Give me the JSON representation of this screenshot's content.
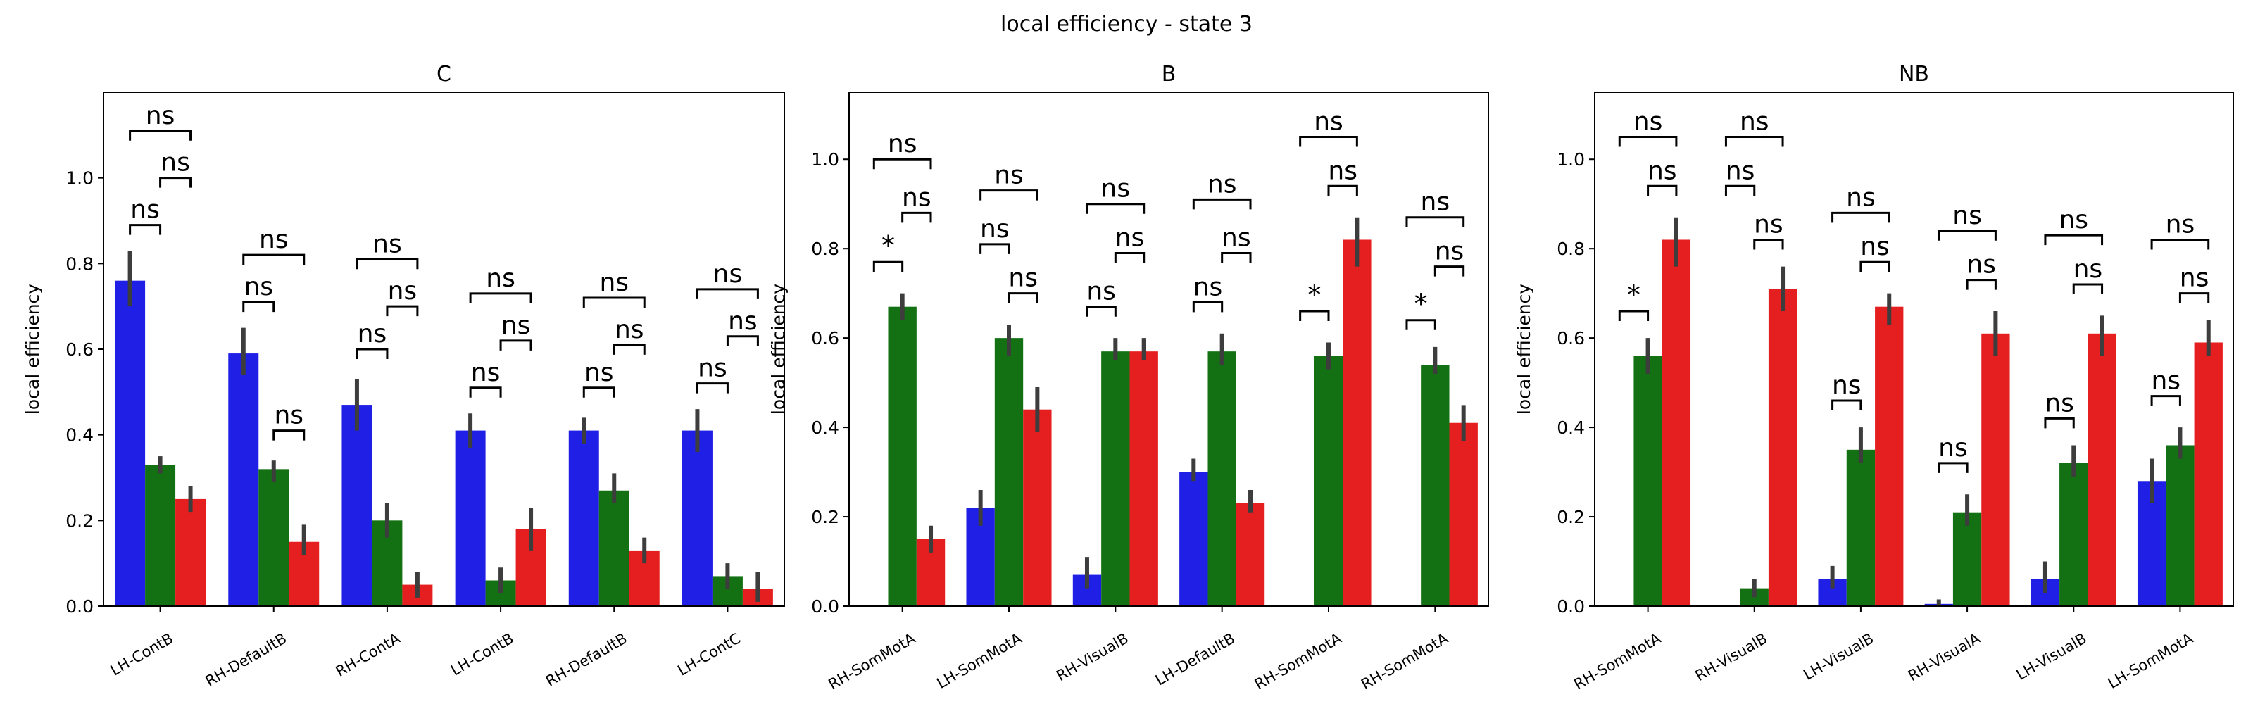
{
  "figure": {
    "suptitle": "local efficiency - state 3"
  },
  "chart_data": [
    {
      "type": "bar",
      "title": "C",
      "ylabel": "local efficiency",
      "xlabel": "",
      "ylim": [
        0,
        1.2
      ],
      "yticks": [
        0.0,
        0.2,
        0.4,
        0.6,
        0.8,
        1.0
      ],
      "grid": false,
      "categories": [
        "LH-ContB",
        "RH-DefaultB",
        "RH-ContA",
        "LH-ContB",
        "RH-DefaultB",
        "LH-ContC"
      ],
      "colors": [
        "#1f1fe5",
        "#137113",
        "#e51f1f"
      ],
      "series": [
        {
          "values": [
            0.76,
            0.59,
            0.47,
            0.41,
            0.41,
            0.41
          ],
          "err_low": [
            0.7,
            0.54,
            0.41,
            0.37,
            0.38,
            0.36
          ],
          "err_high": [
            0.83,
            0.65,
            0.53,
            0.45,
            0.44,
            0.46
          ]
        },
        {
          "values": [
            0.33,
            0.32,
            0.2,
            0.06,
            0.27,
            0.07
          ],
          "err_low": [
            0.31,
            0.29,
            0.16,
            0.03,
            0.24,
            0.04
          ],
          "err_high": [
            0.35,
            0.34,
            0.24,
            0.09,
            0.31,
            0.1
          ]
        },
        {
          "values": [
            0.25,
            0.15,
            0.05,
            0.18,
            0.13,
            0.04
          ],
          "err_low": [
            0.22,
            0.12,
            0.02,
            0.13,
            0.1,
            0.01
          ],
          "err_high": [
            0.28,
            0.19,
            0.08,
            0.23,
            0.16,
            0.08
          ]
        }
      ],
      "annotations": [
        {
          "category": 0,
          "from": 0,
          "to": 1,
          "y": 0.89,
          "text": "ns"
        },
        {
          "category": 0,
          "from": 1,
          "to": 2,
          "y": 1.0,
          "text": "ns"
        },
        {
          "category": 0,
          "from": 0,
          "to": 2,
          "y": 1.11,
          "text": "ns"
        },
        {
          "category": 1,
          "from": 0,
          "to": 1,
          "y": 0.71,
          "text": "ns"
        },
        {
          "category": 1,
          "from": 1,
          "to": 2,
          "y": 0.41,
          "text": "ns"
        },
        {
          "category": 1,
          "from": 0,
          "to": 2,
          "y": 0.82,
          "text": "ns"
        },
        {
          "category": 2,
          "from": 0,
          "to": 1,
          "y": 0.6,
          "text": "ns"
        },
        {
          "category": 2,
          "from": 1,
          "to": 2,
          "y": 0.7,
          "text": "ns"
        },
        {
          "category": 2,
          "from": 0,
          "to": 2,
          "y": 0.81,
          "text": "ns"
        },
        {
          "category": 3,
          "from": 0,
          "to": 1,
          "y": 0.51,
          "text": "ns"
        },
        {
          "category": 3,
          "from": 1,
          "to": 2,
          "y": 0.62,
          "text": "ns"
        },
        {
          "category": 3,
          "from": 0,
          "to": 2,
          "y": 0.73,
          "text": "ns"
        },
        {
          "category": 4,
          "from": 0,
          "to": 1,
          "y": 0.51,
          "text": "ns"
        },
        {
          "category": 4,
          "from": 1,
          "to": 2,
          "y": 0.61,
          "text": "ns"
        },
        {
          "category": 4,
          "from": 0,
          "to": 2,
          "y": 0.72,
          "text": "ns"
        },
        {
          "category": 5,
          "from": 0,
          "to": 1,
          "y": 0.52,
          "text": "ns"
        },
        {
          "category": 5,
          "from": 1,
          "to": 2,
          "y": 0.63,
          "text": "ns"
        },
        {
          "category": 5,
          "from": 0,
          "to": 2,
          "y": 0.74,
          "text": "ns"
        }
      ]
    },
    {
      "type": "bar",
      "title": "B",
      "ylabel": "local efficiency",
      "xlabel": "",
      "ylim": [
        0,
        1.15
      ],
      "yticks": [
        0.0,
        0.2,
        0.4,
        0.6,
        0.8,
        1.0
      ],
      "grid": false,
      "categories": [
        "RH-SomMotA",
        "LH-SomMotA",
        "RH-VisualB",
        "LH-DefaultB",
        "RH-SomMotA",
        "RH-SomMotA"
      ],
      "colors": [
        "#1f1fe5",
        "#137113",
        "#e51f1f"
      ],
      "series": [
        {
          "values": [
            0.0,
            0.22,
            0.07,
            0.3,
            0.0,
            0.0
          ],
          "err_low": [
            null,
            0.18,
            0.04,
            0.28,
            null,
            null
          ],
          "err_high": [
            null,
            0.26,
            0.11,
            0.33,
            null,
            null
          ]
        },
        {
          "values": [
            0.67,
            0.6,
            0.57,
            0.57,
            0.56,
            0.54
          ],
          "err_low": [
            0.64,
            0.56,
            0.55,
            0.54,
            0.53,
            0.52
          ],
          "err_high": [
            0.7,
            0.63,
            0.6,
            0.61,
            0.59,
            0.58
          ]
        },
        {
          "values": [
            0.15,
            0.44,
            0.57,
            0.23,
            0.82,
            0.41
          ],
          "err_low": [
            0.12,
            0.39,
            0.55,
            0.21,
            0.76,
            0.37
          ],
          "err_high": [
            0.18,
            0.49,
            0.6,
            0.26,
            0.87,
            0.45
          ]
        }
      ],
      "annotations": [
        {
          "category": 0,
          "from": 0,
          "to": 1,
          "y": 0.77,
          "text": "*"
        },
        {
          "category": 0,
          "from": 1,
          "to": 2,
          "y": 0.88,
          "text": "ns"
        },
        {
          "category": 0,
          "from": 0,
          "to": 2,
          "y": 1.0,
          "text": "ns"
        },
        {
          "category": 1,
          "from": 0,
          "to": 1,
          "y": 0.81,
          "text": "ns"
        },
        {
          "category": 1,
          "from": 1,
          "to": 2,
          "y": 0.7,
          "text": "ns"
        },
        {
          "category": 1,
          "from": 0,
          "to": 2,
          "y": 0.93,
          "text": "ns"
        },
        {
          "category": 2,
          "from": 0,
          "to": 1,
          "y": 0.67,
          "text": "ns"
        },
        {
          "category": 2,
          "from": 1,
          "to": 2,
          "y": 0.79,
          "text": "ns"
        },
        {
          "category": 2,
          "from": 0,
          "to": 2,
          "y": 0.9,
          "text": "ns"
        },
        {
          "category": 3,
          "from": 0,
          "to": 1,
          "y": 0.68,
          "text": "ns"
        },
        {
          "category": 3,
          "from": 1,
          "to": 2,
          "y": 0.79,
          "text": "ns"
        },
        {
          "category": 3,
          "from": 0,
          "to": 2,
          "y": 0.91,
          "text": "ns"
        },
        {
          "category": 4,
          "from": 0,
          "to": 1,
          "y": 0.66,
          "text": "*"
        },
        {
          "category": 4,
          "from": 1,
          "to": 2,
          "y": 0.94,
          "text": "ns"
        },
        {
          "category": 4,
          "from": 0,
          "to": 2,
          "y": 1.05,
          "text": "ns"
        },
        {
          "category": 5,
          "from": 0,
          "to": 1,
          "y": 0.64,
          "text": "*"
        },
        {
          "category": 5,
          "from": 1,
          "to": 2,
          "y": 0.76,
          "text": "ns"
        },
        {
          "category": 5,
          "from": 0,
          "to": 2,
          "y": 0.87,
          "text": "ns"
        }
      ]
    },
    {
      "type": "bar",
      "title": "NB",
      "ylabel": "local efficiency",
      "xlabel": "",
      "ylim": [
        0,
        1.15
      ],
      "yticks": [
        0.0,
        0.2,
        0.4,
        0.6,
        0.8,
        1.0
      ],
      "grid": false,
      "categories": [
        "RH-SomMotA",
        "RH-VisualB",
        "LH-VisualB",
        "RH-VisualA",
        "LH-VisualB",
        "LH-SomMotA"
      ],
      "colors": [
        "#1f1fe5",
        "#137113",
        "#e51f1f"
      ],
      "series": [
        {
          "values": [
            0.0,
            0.0,
            0.06,
            0.005,
            0.06,
            0.28
          ],
          "err_low": [
            null,
            null,
            0.04,
            0.0,
            0.03,
            0.23
          ],
          "err_high": [
            null,
            null,
            0.09,
            0.015,
            0.1,
            0.33
          ]
        },
        {
          "values": [
            0.56,
            0.04,
            0.35,
            0.21,
            0.32,
            0.36
          ],
          "err_low": [
            0.52,
            0.02,
            0.32,
            0.18,
            0.29,
            0.33
          ],
          "err_high": [
            0.6,
            0.06,
            0.4,
            0.25,
            0.36,
            0.4
          ]
        },
        {
          "values": [
            0.82,
            0.71,
            0.67,
            0.61,
            0.61,
            0.59
          ],
          "err_low": [
            0.76,
            0.66,
            0.63,
            0.56,
            0.56,
            0.56
          ],
          "err_high": [
            0.87,
            0.76,
            0.7,
            0.66,
            0.65,
            0.64
          ]
        }
      ],
      "annotations": [
        {
          "category": 0,
          "from": 0,
          "to": 1,
          "y": 0.66,
          "text": "*"
        },
        {
          "category": 0,
          "from": 1,
          "to": 2,
          "y": 0.94,
          "text": "ns"
        },
        {
          "category": 0,
          "from": 0,
          "to": 2,
          "y": 1.05,
          "text": "ns"
        },
        {
          "category": 1,
          "from": 0,
          "to": 1,
          "y": 0.94,
          "text": "ns"
        },
        {
          "category": 1,
          "from": 1,
          "to": 2,
          "y": 0.82,
          "text": "ns"
        },
        {
          "category": 1,
          "from": 0,
          "to": 2,
          "y": 1.05,
          "text": "ns"
        },
        {
          "category": 2,
          "from": 0,
          "to": 1,
          "y": 0.46,
          "text": "ns"
        },
        {
          "category": 2,
          "from": 1,
          "to": 2,
          "y": 0.77,
          "text": "ns"
        },
        {
          "category": 2,
          "from": 0,
          "to": 2,
          "y": 0.88,
          "text": "ns"
        },
        {
          "category": 3,
          "from": 0,
          "to": 1,
          "y": 0.32,
          "text": "ns"
        },
        {
          "category": 3,
          "from": 1,
          "to": 2,
          "y": 0.73,
          "text": "ns"
        },
        {
          "category": 3,
          "from": 0,
          "to": 2,
          "y": 0.84,
          "text": "ns"
        },
        {
          "category": 4,
          "from": 0,
          "to": 1,
          "y": 0.42,
          "text": "ns"
        },
        {
          "category": 4,
          "from": 1,
          "to": 2,
          "y": 0.72,
          "text": "ns"
        },
        {
          "category": 4,
          "from": 0,
          "to": 2,
          "y": 0.83,
          "text": "ns"
        },
        {
          "category": 5,
          "from": 0,
          "to": 1,
          "y": 0.47,
          "text": "ns"
        },
        {
          "category": 5,
          "from": 1,
          "to": 2,
          "y": 0.7,
          "text": "ns"
        },
        {
          "category": 5,
          "from": 0,
          "to": 2,
          "y": 0.82,
          "text": "ns"
        }
      ]
    }
  ]
}
